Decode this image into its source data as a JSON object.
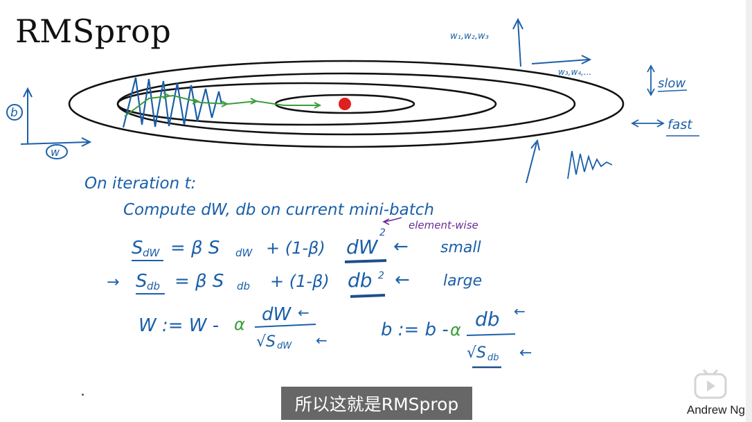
{
  "slide": {
    "title": "RMSprop",
    "axis_b_label": "b",
    "axis_w_label": "w",
    "top_right_param_label": "w₁,w₂,w₃",
    "top_right_axis_label": "w₃,w₄,...",
    "slow_label": "slow",
    "fast_label": "fast",
    "iteration_line": "On iteration t:",
    "compute_line": "Compute dW, db on current mini-batch",
    "element_wise_note": "element-wise",
    "sdw_lhs": "S",
    "sdw_sub": "dW",
    "sdw_rhs_beta": "= β S",
    "sdw_rhs_sub": "dW",
    "sdw_rhs_plus": "+ (1-β)",
    "sdw_term": "dW",
    "sdw_sup": "2",
    "sdw_note": "small",
    "sdb_lhs": "S",
    "sdb_sub": "db",
    "sdb_rhs_beta": "= β S",
    "sdb_rhs_sub": "db",
    "sdb_rhs_plus": "+ (1-β)",
    "sdb_term": "db",
    "sdb_sup": "2",
    "sdb_note": "large",
    "w_update_lhs": "W := W -",
    "w_update_alpha": "α",
    "w_update_num": "dW",
    "w_update_den": "√S",
    "w_update_den_sub": "dW",
    "b_update_lhs": "b := b -",
    "b_update_alpha": "α",
    "b_update_num": "db",
    "b_update_den": "√S",
    "b_update_den_sub": "db",
    "arrow": "←"
  },
  "subtitle": "所以这就是RMSprop",
  "author": "Andrew Ng",
  "colors": {
    "ink": "#1b5fa8",
    "green": "#3a9d3a",
    "purple": "#6a2d91",
    "red": "#e02020",
    "underline": "#1d4f8c"
  }
}
